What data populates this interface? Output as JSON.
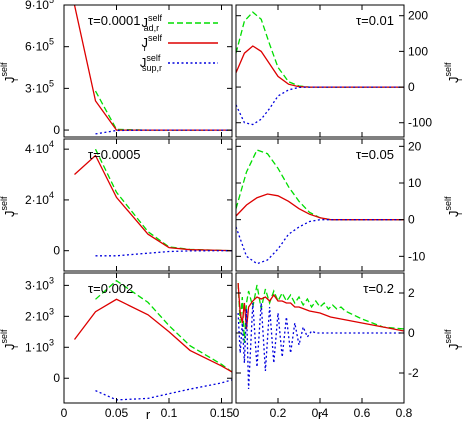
{
  "chart_data": [
    {
      "panel": "top-left",
      "type": "line",
      "annotation": "τ=0.0001",
      "xlim": [
        0,
        0.16
      ],
      "ylim": [
        -50000,
        900000
      ],
      "yticks": [
        {
          "value": 0,
          "label": "0"
        },
        {
          "value": 300000,
          "label": "3·10"
        },
        {
          "value": 600000,
          "label": "6·10"
        },
        {
          "value": 900000,
          "label": "9·10"
        }
      ],
      "ytick_exponent": "5",
      "ylabel": "J",
      "ylabel_sup": "self",
      "ylabel_sub": "r",
      "legend": [
        {
          "main": "J",
          "sup": "self",
          "sub": "ad,r",
          "color": "#00dd00",
          "dash": "dashed"
        },
        {
          "main": "J",
          "sup": "self",
          "sub": "r",
          "color": "#dd0000",
          "dash": "solid"
        },
        {
          "main": "J",
          "sup": "self",
          "sub": "sup,r",
          "color": "#0000dd",
          "dash": "dotted"
        }
      ],
      "series": [
        {
          "color": "#00dd00",
          "dash": "dashed",
          "x": [
            0.03,
            0.05,
            0.08,
            0.1,
            0.12,
            0.15,
            0.16
          ],
          "y": [
            280000,
            5000,
            0,
            0,
            0,
            0,
            0
          ]
        },
        {
          "color": "#dd0000",
          "dash": "solid",
          "x": [
            0.01,
            0.03,
            0.05,
            0.08,
            0.1,
            0.12,
            0.15,
            0.16
          ],
          "y": [
            900000,
            210000,
            0,
            0,
            0,
            0,
            0,
            0
          ]
        },
        {
          "color": "#0000dd",
          "dash": "dotted",
          "x": [
            0.03,
            0.05,
            0.08,
            0.1,
            0.12,
            0.15,
            0.16
          ],
          "y": [
            -28000,
            -3000,
            0,
            0,
            0,
            0,
            0
          ]
        }
      ]
    },
    {
      "panel": "top-right",
      "type": "line",
      "annotation": "τ=0.01",
      "xlim": [
        0,
        0.8
      ],
      "ylim": [
        -140,
        230
      ],
      "yticks": [
        {
          "value": -100,
          "label": "-100"
        },
        {
          "value": 0,
          "label": "0"
        },
        {
          "value": 100,
          "label": "100"
        },
        {
          "value": 200,
          "label": "200"
        }
      ],
      "ylabel": "J",
      "ylabel_sup": "self",
      "ylabel_sub": "r",
      "series": [
        {
          "color": "#00dd00",
          "dash": "dashed",
          "x": [
            0,
            0.04,
            0.08,
            0.12,
            0.16,
            0.2,
            0.25,
            0.3,
            0.35,
            0.4,
            0.5,
            0.6,
            0.7,
            0.8
          ],
          "y": [
            95,
            185,
            210,
            190,
            120,
            55,
            15,
            3,
            0,
            0,
            0,
            0,
            0,
            0
          ]
        },
        {
          "color": "#dd0000",
          "dash": "solid",
          "x": [
            0,
            0.04,
            0.08,
            0.12,
            0.16,
            0.2,
            0.25,
            0.3,
            0.35,
            0.4,
            0.5,
            0.6,
            0.7,
            0.8
          ],
          "y": [
            40,
            95,
            115,
            100,
            65,
            30,
            8,
            1,
            0,
            0,
            0,
            0,
            0,
            0
          ]
        },
        {
          "color": "#0000dd",
          "dash": "dotted",
          "x": [
            0,
            0.04,
            0.08,
            0.12,
            0.16,
            0.2,
            0.25,
            0.3,
            0.35,
            0.4,
            0.5,
            0.6,
            0.7,
            0.8
          ],
          "y": [
            -50,
            -100,
            -105,
            -90,
            -60,
            -25,
            -8,
            -1,
            0,
            0,
            0,
            0,
            0,
            0
          ]
        }
      ]
    },
    {
      "panel": "middle-left",
      "type": "line",
      "annotation": "τ=0.0005",
      "xlim": [
        0,
        0.16
      ],
      "ylim": [
        -8000,
        44000
      ],
      "yticks": [
        {
          "value": 0,
          "label": "0"
        },
        {
          "value": 20000,
          "label": "2·10"
        },
        {
          "value": 40000,
          "label": "4·10"
        }
      ],
      "ytick_exponent": "4",
      "ylabel": "J",
      "ylabel_sup": "self",
      "ylabel_sub": "r",
      "series": [
        {
          "color": "#00dd00",
          "dash": "dashed",
          "x": [
            0.03,
            0.05,
            0.08,
            0.1,
            0.12,
            0.15,
            0.16
          ],
          "y": [
            40000,
            23000,
            7500,
            1500,
            500,
            100,
            0
          ]
        },
        {
          "color": "#dd0000",
          "dash": "solid",
          "x": [
            0.01,
            0.03,
            0.05,
            0.08,
            0.1,
            0.12,
            0.15,
            0.16
          ],
          "y": [
            30000,
            37500,
            21000,
            6500,
            1200,
            400,
            100,
            0
          ]
        },
        {
          "color": "#0000dd",
          "dash": "dotted",
          "x": [
            0.03,
            0.05,
            0.08,
            0.1,
            0.12,
            0.15,
            0.16
          ],
          "y": [
            -2000,
            -2000,
            -1000,
            -300,
            -100,
            0,
            0
          ]
        }
      ]
    },
    {
      "panel": "middle-right",
      "type": "line",
      "annotation": "τ=0.05",
      "xlim": [
        0,
        0.8
      ],
      "ylim": [
        -14,
        22
      ],
      "yticks": [
        {
          "value": -10,
          "label": "-10"
        },
        {
          "value": 0,
          "label": "0"
        },
        {
          "value": 10,
          "label": "10"
        },
        {
          "value": 20,
          "label": "20"
        }
      ],
      "ylabel": "J",
      "ylabel_sup": "self",
      "ylabel_sub": "r",
      "series": [
        {
          "color": "#00dd00",
          "dash": "dashed",
          "x": [
            0,
            0.05,
            0.1,
            0.15,
            0.2,
            0.25,
            0.3,
            0.35,
            0.4,
            0.45,
            0.5,
            0.6,
            0.7,
            0.8
          ],
          "y": [
            3,
            13,
            19,
            18,
            14,
            9,
            5,
            2,
            0.5,
            0,
            0,
            0,
            0,
            0
          ]
        },
        {
          "color": "#dd0000",
          "dash": "solid",
          "x": [
            0,
            0.05,
            0.1,
            0.15,
            0.2,
            0.25,
            0.3,
            0.35,
            0.4,
            0.45,
            0.5,
            0.6,
            0.7,
            0.8
          ],
          "y": [
            1,
            4,
            6,
            7,
            6.5,
            5,
            3,
            1.5,
            0.5,
            0,
            0,
            0,
            0,
            0
          ]
        },
        {
          "color": "#0000dd",
          "dash": "dotted",
          "x": [
            0,
            0.05,
            0.1,
            0.15,
            0.2,
            0.25,
            0.3,
            0.35,
            0.4,
            0.45,
            0.5,
            0.6,
            0.7,
            0.8
          ],
          "y": [
            -2,
            -10,
            -12,
            -11,
            -8,
            -4,
            -2,
            -0.5,
            0,
            0,
            0,
            0,
            0,
            0
          ]
        }
      ]
    },
    {
      "panel": "bottom-left",
      "type": "line",
      "annotation": "τ=0.002",
      "xlim": [
        0,
        0.16
      ],
      "ylim": [
        -800,
        3400
      ],
      "xticks": [
        {
          "value": 0,
          "label": "0"
        },
        {
          "value": 0.05,
          "label": "0.05"
        },
        {
          "value": 0.1,
          "label": "0.1"
        },
        {
          "value": 0.15,
          "label": "0.15"
        }
      ],
      "yticks": [
        {
          "value": 0,
          "label": "0"
        },
        {
          "value": 1000,
          "label": "1·10"
        },
        {
          "value": 2000,
          "label": "2·10"
        },
        {
          "value": 3000,
          "label": "3·10"
        }
      ],
      "ytick_exponent": "3",
      "xlabel": "r",
      "ylabel": "J",
      "ylabel_sup": "self",
      "ylabel_sub": "r",
      "series": [
        {
          "color": "#00dd00",
          "dash": "dashed",
          "x": [
            0.03,
            0.05,
            0.08,
            0.1,
            0.12,
            0.15,
            0.16
          ],
          "y": [
            2550,
            3150,
            2450,
            1700,
            1050,
            450,
            200
          ]
        },
        {
          "color": "#dd0000",
          "dash": "solid",
          "x": [
            0.01,
            0.03,
            0.05,
            0.08,
            0.1,
            0.12,
            0.15,
            0.16
          ],
          "y": [
            1250,
            2150,
            2550,
            2050,
            1500,
            900,
            400,
            200
          ]
        },
        {
          "color": "#0000dd",
          "dash": "dotted",
          "x": [
            0.03,
            0.05,
            0.08,
            0.1,
            0.12,
            0.15,
            0.16
          ],
          "y": [
            -400,
            -700,
            -650,
            -500,
            -350,
            -150,
            -50
          ]
        }
      ]
    },
    {
      "panel": "bottom-right",
      "type": "line",
      "annotation": "τ=0.2",
      "xlim": [
        0,
        0.8
      ],
      "ylim": [
        -3.5,
        3
      ],
      "xticks": [
        {
          "value": 0,
          "label": "0"
        },
        {
          "value": 0.2,
          "label": "0.2"
        },
        {
          "value": 0.4,
          "label": "0.4"
        },
        {
          "value": 0.6,
          "label": "0.6"
        },
        {
          "value": 0.8,
          "label": "0.8"
        }
      ],
      "yticks": [
        {
          "value": -2,
          "label": "-2"
        },
        {
          "value": 0,
          "label": "0"
        },
        {
          "value": 2,
          "label": "2"
        }
      ],
      "xlabel": "r",
      "ylabel": "J",
      "ylabel_sup": "self",
      "ylabel_sub": "r",
      "series": [
        {
          "color": "#00dd00",
          "dash": "dashed",
          "x": [
            0.01,
            0.02,
            0.03,
            0.04,
            0.05,
            0.06,
            0.08,
            0.1,
            0.12,
            0.14,
            0.16,
            0.18,
            0.2,
            0.22,
            0.24,
            0.26,
            0.28,
            0.3,
            0.32,
            0.34,
            0.36,
            0.38,
            0.4,
            0.42,
            0.44,
            0.46,
            0.48,
            0.5,
            0.52,
            0.54,
            0.56,
            0.58,
            0.6,
            0.65,
            0.7,
            0.75,
            0.8
          ],
          "y": [
            2.5,
            0.5,
            1.8,
            -0.5,
            1.5,
            2.1,
            1.3,
            2.4,
            1.2,
            2.2,
            1.5,
            2.1,
            1.6,
            2.0,
            1.6,
            1.9,
            1.5,
            1.8,
            1.4,
            1.7,
            1.3,
            1.6,
            1.3,
            1.5,
            1.2,
            1.4,
            1.2,
            1.3,
            1.1,
            1.0,
            0.9,
            0.8,
            0.7,
            0.5,
            0.3,
            0.25,
            0.2
          ]
        },
        {
          "color": "#dd0000",
          "dash": "solid",
          "x": [
            0.01,
            0.02,
            0.03,
            0.04,
            0.05,
            0.06,
            0.08,
            0.1,
            0.12,
            0.14,
            0.16,
            0.18,
            0.2,
            0.22,
            0.24,
            0.26,
            0.28,
            0.3,
            0.35,
            0.4,
            0.45,
            0.5,
            0.55,
            0.6,
            0.65,
            0.7,
            0.75,
            0.8
          ],
          "y": [
            2.5,
            1.0,
            0.5,
            1.5,
            0.2,
            1.3,
            1.6,
            1.8,
            1.7,
            1.8,
            1.6,
            1.9,
            1.6,
            1.6,
            1.5,
            1.5,
            1.3,
            1.3,
            1.1,
            1.0,
            0.8,
            0.7,
            0.6,
            0.5,
            0.4,
            0.3,
            0.2,
            0.1
          ]
        },
        {
          "color": "#0000dd",
          "dash": "dotted",
          "x": [
            0.01,
            0.02,
            0.03,
            0.04,
            0.05,
            0.06,
            0.08,
            0.1,
            0.12,
            0.14,
            0.16,
            0.18,
            0.2,
            0.22,
            0.24,
            0.26,
            0.28,
            0.3,
            0.32,
            0.34,
            0.36,
            0.38,
            0.4,
            0.45,
            0.5,
            0.55,
            0.6,
            0.65,
            0.7,
            0.8
          ],
          "y": [
            1.0,
            -1.0,
            0.5,
            -1.5,
            1.2,
            -2.8,
            1.5,
            -1.7,
            1.5,
            -1.9,
            1.3,
            -1.5,
            1.0,
            -1.2,
            0.8,
            -1.0,
            0.5,
            -0.6,
            0.3,
            -0.2,
            0.1,
            0,
            0,
            0,
            0,
            0,
            0,
            0,
            0,
            0
          ]
        }
      ]
    }
  ]
}
